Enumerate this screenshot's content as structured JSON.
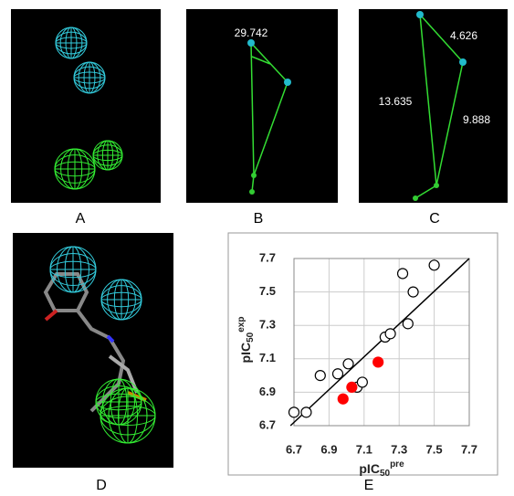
{
  "panel_labels": [
    "A",
    "B",
    "C",
    "D",
    "E"
  ],
  "distances_b": [
    "29.742"
  ],
  "distances_c": [
    "4.626",
    "13.635",
    "9.888"
  ],
  "chart_data": {
    "type": "scatter",
    "x_label": {
      "base": "pIC",
      "sub": "50",
      "sup": "pre"
    },
    "y_label": {
      "base": "pIC",
      "sub": "50",
      "sup": "exp"
    },
    "series": [
      {
        "marker": "open",
        "color": "#000000",
        "x": [
          6.7,
          6.77,
          6.85,
          6.95,
          7.01,
          7.06,
          7.09,
          7.22,
          7.25,
          7.35,
          7.32,
          7.38,
          7.5
        ],
        "values": [
          6.78,
          6.78,
          7.0,
          7.01,
          7.07,
          6.93,
          6.96,
          7.23,
          7.25,
          7.31,
          7.61,
          7.5,
          7.66
        ]
      },
      {
        "marker": "filled",
        "color": "#ff0000",
        "x": [
          6.98,
          7.03,
          7.18
        ],
        "values": [
          6.86,
          6.93,
          7.08
        ]
      }
    ],
    "trend_line": {
      "x": [
        6.68,
        7.7
      ],
      "values": [
        6.7,
        7.7
      ],
      "color": "#000000"
    },
    "xlim": [
      6.7,
      7.7
    ],
    "ylim": [
      6.7,
      7.7
    ],
    "xticks": [
      6.7,
      6.9,
      7.1,
      7.3,
      7.5,
      7.7
    ],
    "yticks": [
      6.7,
      6.9,
      7.1,
      7.3,
      7.5,
      7.7
    ],
    "grid": true
  }
}
